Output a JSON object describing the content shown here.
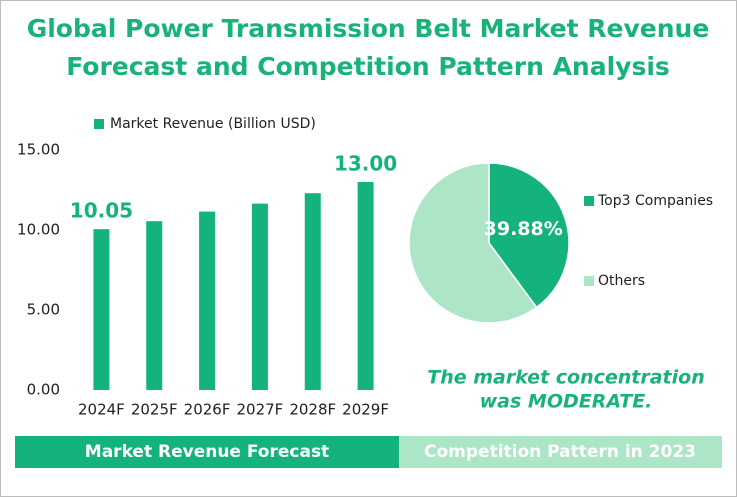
{
  "title": "Global Power Transmission Belt Market Revenue Forecast and Competition Pattern Analysis",
  "chart_data": [
    {
      "type": "bar",
      "categories": [
        "2024F",
        "2025F",
        "2026F",
        "2027F",
        "2028F",
        "2029F"
      ],
      "series": [
        {
          "name": "Market Revenue (Billion USD)",
          "color": "#14b37d",
          "values": [
            10.05,
            10.55,
            11.15,
            11.65,
            12.3,
            13.0
          ],
          "value_labels": [
            "10.05",
            null,
            null,
            null,
            null,
            "13.00"
          ]
        }
      ],
      "ylim": [
        0,
        15
      ],
      "yticks": [
        {
          "value": 0,
          "label": "0.00"
        },
        {
          "value": 5,
          "label": "5.00"
        },
        {
          "value": 10,
          "label": "10.00"
        },
        {
          "value": 15,
          "label": "15.00"
        }
      ],
      "legend": "top"
    },
    {
      "type": "pie",
      "categories": [
        "Top3 Companies",
        "Others"
      ],
      "values": [
        39.88,
        60.12
      ],
      "value_labels": [
        "39.88%",
        null
      ],
      "colors": [
        "#14b37d",
        "#ade6c6"
      ],
      "legend": "right"
    }
  ],
  "annotation": [
    "The market concentration",
    "was MODERATE."
  ],
  "footer": [
    "Market Revenue Forecast",
    "Competition Pattern in 2023"
  ]
}
